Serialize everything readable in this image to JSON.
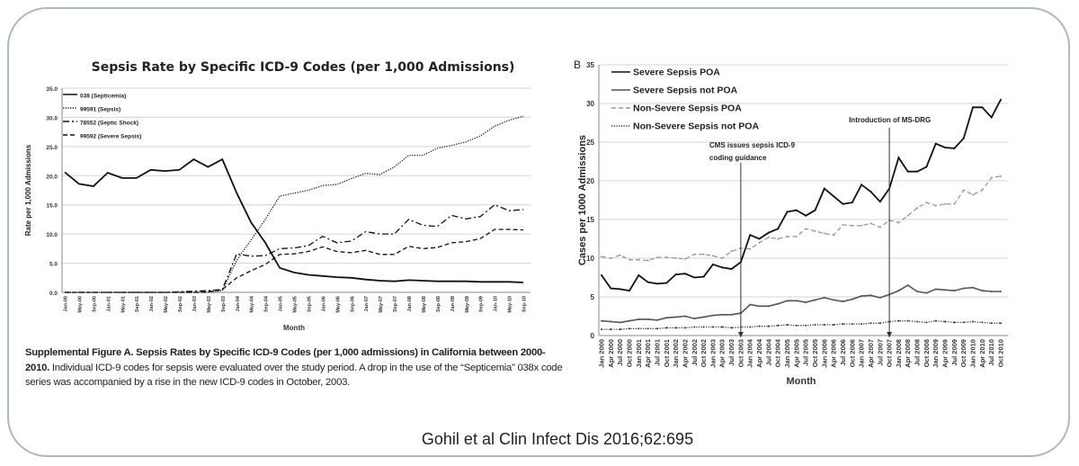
{
  "citation": "Gohil et al Clin Infect Dis 2016;62:695",
  "caption": {
    "bold": "Supplemental Figure A.  Sepsis Rates by Specific ICD-9 Codes (per 1,000 admissions) in California between 2000-2010.",
    "text": " Individual ICD-9 codes for sepsis were evaluated over the study period. A drop in the use of the “Septicemia” 038x code series was accompanied by a rise in the new ICD-9 codes in October, 2003."
  },
  "chart_data": [
    {
      "type": "line",
      "title": "Sepsis Rate by Specific ICD-9 Codes (per 1,000 Admissions)",
      "xlabel": "Month",
      "ylabel": "Rate per 1,000 Admissions",
      "ylim": [
        0,
        35
      ],
      "yticks": [
        "0.0",
        "5.0",
        "10.0",
        "15.0",
        "20.0",
        "25.0",
        "30.0",
        "35.0"
      ],
      "grid": true,
      "legend": "top-left",
      "x": [
        "Jan-00",
        "May-00",
        "Sep-00",
        "Jan-01",
        "May-01",
        "Sep-01",
        "Jan-02",
        "May-02",
        "Sep-02",
        "Jan-03",
        "May-03",
        "Sep-03",
        "Jan-04",
        "May-04",
        "Sep-04",
        "Jan-05",
        "May-05",
        "Sep-05",
        "Jan-06",
        "May-06",
        "Sep-06",
        "Jan-07",
        "May-07",
        "Sep-07",
        "Jan-08",
        "May-08",
        "Sep-08",
        "Jan-09",
        "May-09",
        "Sep-09",
        "Jan-10",
        "May-10",
        "Sep-10"
      ],
      "series": [
        {
          "name": "038 (Septicemia)",
          "style": "solid",
          "values": [
            20.6,
            18.6,
            18.2,
            20.5,
            19.6,
            19.6,
            21.0,
            20.8,
            21.0,
            22.8,
            21.5,
            22.8,
            17.0,
            12.0,
            8.5,
            4.2,
            3.4,
            3.0,
            2.8,
            2.6,
            2.5,
            2.2,
            2.0,
            1.9,
            2.1,
            2.0,
            1.9,
            1.9,
            1.9,
            1.8,
            1.8,
            1.8,
            1.7
          ]
        },
        {
          "name": "99591 (Sepsis)",
          "style": "dotted",
          "values": [
            0,
            0,
            0,
            0,
            0,
            0,
            0,
            0,
            0,
            0,
            0,
            0.3,
            5.5,
            9.0,
            12.5,
            16.5,
            17.0,
            17.5,
            18.3,
            18.5,
            19.5,
            20.4,
            20.2,
            21.5,
            23.5,
            23.5,
            24.7,
            25.2,
            25.8,
            26.8,
            28.5,
            29.5,
            30.2
          ]
        },
        {
          "name": "78552 (Septic Shock)",
          "style": "dashdot",
          "values": [
            0,
            0,
            0,
            0,
            0,
            0,
            0,
            0,
            0.1,
            0.2,
            0.3,
            0.5,
            6.6,
            6.2,
            6.3,
            7.5,
            7.6,
            8.0,
            9.6,
            8.5,
            8.8,
            10.4,
            10.0,
            10.0,
            12.5,
            11.5,
            11.3,
            13.2,
            12.6,
            13.0,
            15.0,
            14.0,
            14.2
          ]
        },
        {
          "name": "99592 (Severe Sepsis)",
          "style": "dashed",
          "values": [
            0,
            0,
            0,
            0,
            0,
            0,
            0,
            0,
            0,
            0,
            0.1,
            0.5,
            2.5,
            3.7,
            4.8,
            6.5,
            6.6,
            7.0,
            7.8,
            7.0,
            6.8,
            7.2,
            6.5,
            6.5,
            7.9,
            7.5,
            7.7,
            8.5,
            8.7,
            9.2,
            10.8,
            10.8,
            10.7
          ]
        }
      ]
    },
    {
      "type": "line",
      "panel_label": "B",
      "xlabel": "Month",
      "ylabel": "Cases per 1000 Admissions",
      "ylim": [
        0,
        35
      ],
      "yticks": [
        "0",
        "5",
        "10",
        "15",
        "20",
        "25",
        "30",
        "35"
      ],
      "grid": true,
      "legend": "top-left",
      "x": [
        "Jan 2000",
        "Apr 2000",
        "Jul 2000",
        "Oct 2000",
        "Jan 2001",
        "Apr 2001",
        "Jul 2001",
        "Oct 2001",
        "Jan 2002",
        "Apr 2002",
        "Jul 2002",
        "Oct 2002",
        "Jan 2003",
        "Apr 2003",
        "Jul 2003",
        "Oct 2003",
        "Jan 2004",
        "Apr 2004",
        "Jul 2004",
        "Oct 2004",
        "Jan 2005",
        "Apr 2005",
        "Jul 2005",
        "Oct 2005",
        "Jan 2006",
        "Apr 2006",
        "Jul 2006",
        "Oct 2006",
        "Jan 2007",
        "Apr 2007",
        "Jul 2007",
        "Oct 2007",
        "Jan 2008",
        "Apr 2008",
        "Jul 2008",
        "Oct 2008",
        "Jan 2009",
        "Apr 2009",
        "Jul 2009",
        "Oct 2009",
        "Jan 2010",
        "Apr 2010",
        "Jul 2010",
        "Oct 2010"
      ],
      "series": [
        {
          "name": "Severe Sepsis POA",
          "color": "#111111",
          "style": "solid",
          "values": [
            7.8,
            6.1,
            6.0,
            5.8,
            7.8,
            6.9,
            6.7,
            6.8,
            7.9,
            8.0,
            7.5,
            7.6,
            9.2,
            8.8,
            8.6,
            9.5,
            13.0,
            12.5,
            13.3,
            13.8,
            16.0,
            16.2,
            15.5,
            16.2,
            19.0,
            18.0,
            17.0,
            17.2,
            19.5,
            18.6,
            17.3,
            19.0,
            23.0,
            21.2,
            21.2,
            21.8,
            24.8,
            24.3,
            24.2,
            25.5,
            29.5,
            29.5,
            28.2,
            30.5
          ]
        },
        {
          "name": "Severe Sepsis not POA",
          "color": "#555555",
          "style": "solid",
          "values": [
            1.9,
            1.8,
            1.7,
            1.9,
            2.1,
            2.1,
            2.0,
            2.3,
            2.4,
            2.5,
            2.2,
            2.4,
            2.6,
            2.7,
            2.7,
            2.9,
            4.0,
            3.8,
            3.8,
            4.1,
            4.5,
            4.5,
            4.3,
            4.6,
            4.9,
            4.6,
            4.4,
            4.7,
            5.1,
            5.2,
            4.9,
            5.3,
            5.8,
            6.5,
            5.7,
            5.5,
            6.0,
            5.9,
            5.8,
            6.1,
            6.2,
            5.8,
            5.7,
            5.7
          ]
        },
        {
          "name": "Non-Severe Sepsis POA",
          "color": "#999999",
          "style": "dashed",
          "values": [
            10.2,
            10.0,
            10.4,
            9.8,
            9.8,
            9.7,
            10.1,
            10.1,
            10.0,
            9.9,
            10.5,
            10.5,
            10.3,
            10.0,
            10.9,
            11.3,
            11.2,
            12.0,
            12.7,
            12.5,
            12.8,
            12.8,
            13.8,
            13.5,
            13.2,
            13.0,
            14.3,
            14.2,
            14.2,
            14.5,
            14.0,
            14.9,
            14.6,
            15.5,
            16.5,
            17.2,
            16.8,
            17.0,
            17.0,
            18.8,
            18.2,
            18.8,
            20.4,
            20.6
          ]
        },
        {
          "name": "Non-Severe Sepsis not POA",
          "color": "#333333",
          "style": "dotted",
          "values": [
            0.8,
            0.8,
            0.8,
            0.9,
            0.9,
            0.9,
            0.9,
            1.0,
            1.0,
            1.0,
            1.1,
            1.1,
            1.1,
            1.1,
            1.0,
            1.1,
            1.1,
            1.2,
            1.2,
            1.3,
            1.4,
            1.3,
            1.3,
            1.4,
            1.4,
            1.4,
            1.5,
            1.5,
            1.5,
            1.6,
            1.6,
            1.8,
            1.9,
            1.9,
            1.8,
            1.7,
            1.9,
            1.8,
            1.7,
            1.7,
            1.8,
            1.7,
            1.6,
            1.6
          ]
        }
      ],
      "annotations": [
        {
          "text": [
            "CMS issues sepsis ICD-9",
            "coding guidance"
          ],
          "x": "Oct 2003"
        },
        {
          "text": [
            "Introduction of MS-DRG"
          ],
          "x": "Oct 2007"
        }
      ]
    }
  ]
}
